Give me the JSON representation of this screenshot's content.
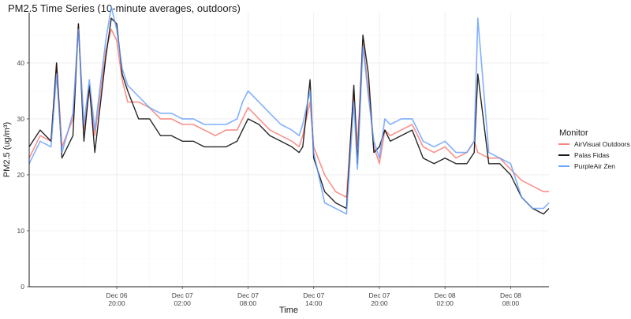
{
  "chart_data": {
    "type": "line",
    "title": "PM2.5 Time Series (10-minute averages, outdoors)",
    "xlabel": "Time",
    "ylabel": "PM2.5 (ug/m³)",
    "ylim": [
      0,
      49
    ],
    "yticks": [
      0,
      10,
      20,
      30,
      40
    ],
    "xlim": [
      "2021-12-06 12:00",
      "2021-12-08 11:30"
    ],
    "xticks": [
      {
        "t": "2021-12-06 20:00",
        "line1": "Dec 06",
        "line2": "20:00"
      },
      {
        "t": "2021-12-07 02:00",
        "line1": "Dec 07",
        "line2": "02:00"
      },
      {
        "t": "2021-12-07 08:00",
        "line1": "Dec 07",
        "line2": "08:00"
      },
      {
        "t": "2021-12-07 14:00",
        "line1": "Dec 07",
        "line2": "14:00"
      },
      {
        "t": "2021-12-07 20:00",
        "line1": "Dec 07",
        "line2": "20:00"
      },
      {
        "t": "2021-12-08 02:00",
        "line1": "Dec 08",
        "line2": "02:00"
      },
      {
        "t": "2021-12-08 08:00",
        "line1": "Dec 08",
        "line2": "08:00"
      }
    ],
    "grid": true,
    "legend": {
      "title": "Monitor",
      "position": "right"
    },
    "x": [
      "2021-12-06 12:00",
      "2021-12-06 13:00",
      "2021-12-06 14:00",
      "2021-12-06 14:30",
      "2021-12-06 15:00",
      "2021-12-06 16:00",
      "2021-12-06 16:30",
      "2021-12-06 17:00",
      "2021-12-06 17:30",
      "2021-12-06 18:00",
      "2021-12-06 19:00",
      "2021-12-06 19:30",
      "2021-12-06 20:00",
      "2021-12-06 20:30",
      "2021-12-06 21:00",
      "2021-12-06 22:00",
      "2021-12-06 23:00",
      "2021-12-07 00:00",
      "2021-12-07 01:00",
      "2021-12-07 02:00",
      "2021-12-07 03:00",
      "2021-12-07 04:00",
      "2021-12-07 05:00",
      "2021-12-07 06:00",
      "2021-12-07 07:00",
      "2021-12-07 07:30",
      "2021-12-07 08:00",
      "2021-12-07 09:00",
      "2021-12-07 10:00",
      "2021-12-07 11:00",
      "2021-12-07 12:00",
      "2021-12-07 12:40",
      "2021-12-07 13:00",
      "2021-12-07 13:40",
      "2021-12-07 14:00",
      "2021-12-07 15:00",
      "2021-12-07 16:00",
      "2021-12-07 17:00",
      "2021-12-07 17:40",
      "2021-12-07 18:00",
      "2021-12-07 18:30",
      "2021-12-07 19:00",
      "2021-12-07 19:30",
      "2021-12-07 20:00",
      "2021-12-07 20:30",
      "2021-12-07 21:00",
      "2021-12-07 22:00",
      "2021-12-07 23:00",
      "2021-12-08 00:00",
      "2021-12-08 01:00",
      "2021-12-08 02:00",
      "2021-12-08 03:00",
      "2021-12-08 04:00",
      "2021-12-08 04:40",
      "2021-12-08 05:00",
      "2021-12-08 06:00",
      "2021-12-08 07:00",
      "2021-12-08 08:00",
      "2021-12-08 09:00",
      "2021-12-08 10:00",
      "2021-12-08 11:00",
      "2021-12-08 11:30"
    ],
    "series": [
      {
        "name": "AirVisual Outdoors",
        "color": "#F8766D",
        "values": [
          23,
          27,
          26,
          40,
          25,
          30,
          47,
          28,
          35,
          27,
          42,
          46,
          44,
          37,
          33,
          33,
          32,
          30,
          30,
          29,
          29,
          28,
          27,
          28,
          28,
          30,
          32,
          30,
          28,
          27,
          26,
          25,
          27,
          33,
          25,
          20,
          17,
          16,
          35,
          25,
          44,
          35,
          25,
          22,
          28,
          27,
          28,
          29,
          25,
          24,
          25,
          23,
          24,
          26,
          24,
          23,
          23,
          21,
          19,
          18,
          17,
          17
        ]
      },
      {
        "name": "Palas Fidas",
        "color": "#000000",
        "values": [
          25,
          28,
          26,
          40,
          23,
          27,
          47,
          26,
          36,
          24,
          41,
          48,
          47,
          38,
          35,
          30,
          30,
          27,
          27,
          26,
          26,
          25,
          25,
          25,
          26,
          28,
          30,
          29,
          27,
          26,
          25,
          24,
          25,
          37,
          23,
          17,
          15,
          14,
          36,
          22,
          45,
          38,
          24,
          25,
          28,
          26,
          27,
          28,
          23,
          22,
          23,
          22,
          22,
          24,
          38,
          22,
          22,
          20,
          16,
          14,
          13,
          14
        ]
      },
      {
        "name": "PurpleAir Zen",
        "color": "#619CFF",
        "values": [
          22,
          26,
          25,
          38,
          24,
          31,
          46,
          29,
          37,
          28,
          44,
          50,
          46,
          39,
          36,
          34,
          32,
          31,
          31,
          30,
          30,
          29,
          29,
          29,
          30,
          33,
          35,
          33,
          31,
          29,
          28,
          27,
          29,
          35,
          24,
          15,
          14,
          13,
          33,
          21,
          43,
          34,
          26,
          23,
          30,
          29,
          30,
          30,
          26,
          25,
          26,
          24,
          24,
          26,
          48,
          24,
          23,
          22,
          16,
          14,
          14,
          15
        ]
      }
    ]
  }
}
